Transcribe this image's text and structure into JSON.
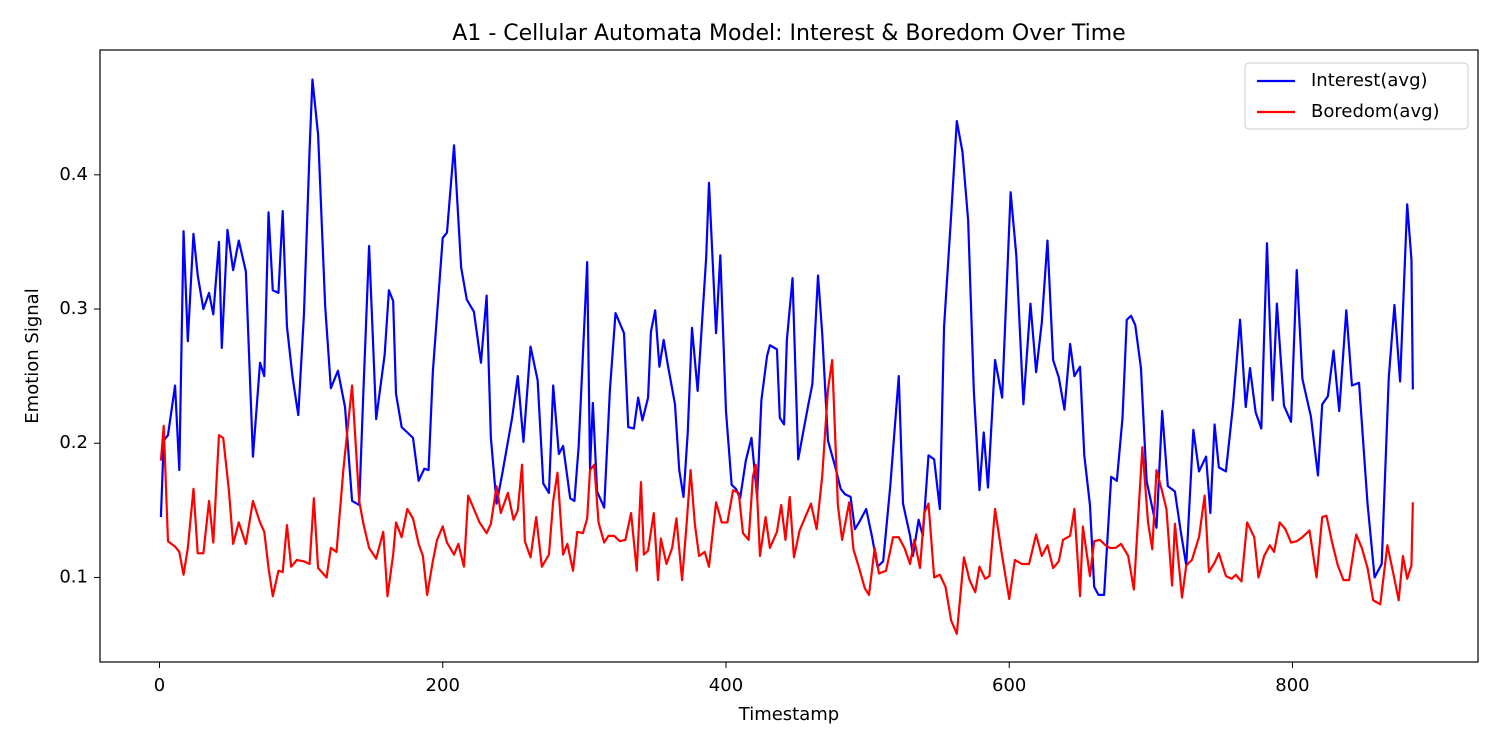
{
  "chart_data": {
    "type": "line",
    "title": "A1 - Cellular Automata Model: Interest & Boredom Over Time",
    "x_label": "Timestamp",
    "y_label": "Emotion Signal",
    "xlim": [
      -42,
      931
    ],
    "ylim": [
      0.037,
      0.493
    ],
    "xticks": [
      0,
      200,
      400,
      600,
      800
    ],
    "yticks": [
      0.1,
      0.2,
      0.3,
      0.4
    ],
    "legend": "upper right",
    "grid": false,
    "series": [
      {
        "name": "Interest(avg)",
        "color": "#0000ff",
        "x": [
          1,
          3,
          6,
          11,
          14,
          17,
          20,
          24,
          27,
          31,
          35,
          38,
          42,
          44,
          48,
          52,
          56,
          61,
          66,
          71,
          74,
          77,
          80,
          84,
          87,
          90,
          94,
          98,
          102,
          106,
          108,
          112,
          117,
          121,
          126,
          131,
          136,
          141,
          144,
          148,
          153,
          159,
          162,
          165,
          167,
          171,
          175,
          179,
          183,
          187,
          190,
          193,
          196,
          200,
          203,
          208,
          213,
          217,
          222,
          227,
          231,
          234,
          238,
          242,
          249,
          253,
          257,
          262,
          267,
          271,
          275,
          278,
          282,
          285,
          290,
          293,
          296,
          302,
          304,
          306,
          309,
          314,
          318,
          322,
          328,
          331,
          335,
          338,
          341,
          345,
          347,
          350,
          353,
          356,
          359,
          364,
          367,
          370,
          373,
          376,
          380,
          386,
          388,
          393,
          396,
          400,
          404,
          407,
          410,
          414,
          418,
          422,
          425,
          429,
          431,
          436,
          438,
          441,
          443,
          447,
          451,
          455,
          458,
          461,
          465,
          468,
          472,
          477,
          481,
          484,
          488,
          491,
          494,
          499,
          503,
          507,
          511,
          516,
          522,
          525,
          530,
          532,
          536,
          539,
          543,
          547,
          551,
          554,
          559,
          563,
          567,
          571,
          575,
          579,
          582,
          585,
          590,
          595,
          601,
          605,
          610,
          615,
          619,
          623,
          627,
          631,
          635,
          639,
          643,
          646,
          650,
          653,
          657,
          660,
          663,
          667,
          672,
          676,
          680,
          683,
          686,
          689,
          693,
          697,
          700,
          704,
          708,
          712,
          717,
          721,
          725,
          730,
          734,
          739,
          742,
          745,
          748,
          753,
          758,
          763,
          767,
          770,
          774,
          778,
          782,
          786,
          789,
          794,
          799,
          803,
          807,
          813,
          818,
          821,
          825,
          829,
          833,
          838,
          842,
          847,
          853,
          858,
          863,
          868,
          872,
          876,
          881,
          884,
          885
        ],
        "values": [
          0.145,
          0.202,
          0.206,
          0.243,
          0.18,
          0.358,
          0.276,
          0.356,
          0.325,
          0.3,
          0.312,
          0.296,
          0.35,
          0.271,
          0.359,
          0.329,
          0.351,
          0.328,
          0.19,
          0.26,
          0.25,
          0.372,
          0.314,
          0.312,
          0.373,
          0.287,
          0.249,
          0.221,
          0.296,
          0.419,
          0.471,
          0.43,
          0.302,
          0.241,
          0.254,
          0.227,
          0.157,
          0.154,
          0.239,
          0.347,
          0.218,
          0.266,
          0.314,
          0.306,
          0.237,
          0.212,
          0.208,
          0.204,
          0.172,
          0.181,
          0.18,
          0.253,
          0.296,
          0.353,
          0.357,
          0.422,
          0.331,
          0.307,
          0.298,
          0.26,
          0.31,
          0.204,
          0.155,
          0.177,
          0.219,
          0.25,
          0.201,
          0.272,
          0.247,
          0.17,
          0.163,
          0.243,
          0.192,
          0.198,
          0.159,
          0.157,
          0.198,
          0.335,
          0.181,
          0.23,
          0.164,
          0.152,
          0.239,
          0.297,
          0.282,
          0.212,
          0.211,
          0.234,
          0.217,
          0.234,
          0.283,
          0.299,
          0.257,
          0.277,
          0.258,
          0.229,
          0.18,
          0.16,
          0.208,
          0.286,
          0.239,
          0.338,
          0.394,
          0.282,
          0.34,
          0.224,
          0.169,
          0.166,
          0.159,
          0.187,
          0.204,
          0.16,
          0.232,
          0.265,
          0.273,
          0.27,
          0.219,
          0.214,
          0.277,
          0.323,
          0.188,
          0.211,
          0.228,
          0.244,
          0.325,
          0.281,
          0.202,
          0.183,
          0.166,
          0.162,
          0.16,
          0.136,
          0.141,
          0.151,
          0.131,
          0.108,
          0.112,
          0.168,
          0.25,
          0.155,
          0.131,
          0.116,
          0.143,
          0.131,
          0.191,
          0.188,
          0.151,
          0.287,
          0.37,
          0.44,
          0.417,
          0.366,
          0.239,
          0.165,
          0.208,
          0.167,
          0.262,
          0.234,
          0.387,
          0.34,
          0.229,
          0.304,
          0.253,
          0.29,
          0.351,
          0.262,
          0.249,
          0.225,
          0.274,
          0.25,
          0.257,
          0.191,
          0.154,
          0.093,
          0.087,
          0.087,
          0.175,
          0.172,
          0.219,
          0.292,
          0.295,
          0.288,
          0.256,
          0.172,
          0.157,
          0.137,
          0.224,
          0.168,
          0.164,
          0.135,
          0.109,
          0.21,
          0.179,
          0.19,
          0.148,
          0.214,
          0.182,
          0.179,
          0.228,
          0.292,
          0.227,
          0.256,
          0.223,
          0.211,
          0.349,
          0.232,
          0.304,
          0.228,
          0.216,
          0.329,
          0.248,
          0.22,
          0.176,
          0.229,
          0.235,
          0.269,
          0.224,
          0.299,
          0.243,
          0.245,
          0.155,
          0.1,
          0.11,
          0.249,
          0.303,
          0.246,
          0.378,
          0.337,
          0.24
        ]
      },
      {
        "name": "Boredom(avg)",
        "color": "#ff0000",
        "x": [
          1,
          3,
          6,
          11,
          14,
          17,
          20,
          24,
          27,
          31,
          35,
          38,
          42,
          45,
          49,
          52,
          56,
          61,
          66,
          71,
          74,
          77,
          80,
          84,
          87,
          90,
          93,
          97,
          102,
          106,
          109,
          112,
          118,
          121,
          125,
          130,
          136,
          141,
          144,
          148,
          153,
          158,
          161,
          165,
          167,
          171,
          175,
          179,
          183,
          186,
          189,
          193,
          196,
          200,
          203,
          208,
          211,
          215,
          218,
          222,
          226,
          231,
          234,
          238,
          241,
          246,
          250,
          253,
          256,
          258,
          262,
          266,
          270,
          275,
          278,
          281,
          285,
          288,
          292,
          295,
          299,
          302,
          304,
          307,
          310,
          314,
          317,
          321,
          325,
          329,
          333,
          337,
          340,
          342,
          345,
          349,
          352,
          354,
          358,
          362,
          365,
          369,
          372,
          375,
          378,
          381,
          385,
          388,
          393,
          397,
          401,
          405,
          409,
          412,
          416,
          419,
          421,
          424,
          428,
          431,
          436,
          439,
          442,
          445,
          448,
          452,
          460,
          464,
          468,
          472,
          475,
          479,
          482,
          487,
          490,
          494,
          498,
          501,
          505,
          508,
          513,
          518,
          522,
          526,
          530,
          533,
          537,
          540,
          543,
          547,
          551,
          555,
          559,
          563,
          568,
          572,
          576,
          579,
          583,
          586,
          590,
          595,
          600,
          604,
          609,
          614,
          619,
          623,
          627,
          631,
          635,
          638,
          643,
          646,
          650,
          652,
          657,
          660,
          664,
          668,
          671,
          675,
          679,
          684,
          688,
          694,
          698,
          701,
          704,
          708,
          711,
          715,
          717,
          722,
          725,
          729,
          734,
          738,
          741,
          745,
          748,
          753,
          757,
          760,
          764,
          768,
          773,
          776,
          780,
          784,
          787,
          791,
          795,
          799,
          803,
          807,
          812,
          817,
          821,
          824,
          828,
          832,
          836,
          840,
          845,
          849,
          853,
          857,
          862,
          867,
          871,
          875,
          878,
          881,
          884,
          885
        ],
        "values": [
          0.187,
          0.213,
          0.127,
          0.123,
          0.119,
          0.102,
          0.122,
          0.166,
          0.118,
          0.118,
          0.157,
          0.126,
          0.206,
          0.204,
          0.165,
          0.125,
          0.141,
          0.125,
          0.157,
          0.141,
          0.134,
          0.107,
          0.086,
          0.105,
          0.104,
          0.139,
          0.108,
          0.113,
          0.112,
          0.11,
          0.159,
          0.107,
          0.1,
          0.122,
          0.119,
          0.182,
          0.243,
          0.157,
          0.14,
          0.122,
          0.114,
          0.134,
          0.086,
          0.117,
          0.141,
          0.13,
          0.151,
          0.144,
          0.125,
          0.116,
          0.087,
          0.112,
          0.128,
          0.138,
          0.126,
          0.117,
          0.125,
          0.108,
          0.161,
          0.151,
          0.141,
          0.133,
          0.14,
          0.168,
          0.148,
          0.163,
          0.143,
          0.15,
          0.184,
          0.127,
          0.115,
          0.145,
          0.108,
          0.117,
          0.157,
          0.178,
          0.117,
          0.125,
          0.105,
          0.134,
          0.133,
          0.144,
          0.18,
          0.184,
          0.141,
          0.126,
          0.131,
          0.131,
          0.127,
          0.128,
          0.148,
          0.105,
          0.171,
          0.117,
          0.12,
          0.148,
          0.098,
          0.129,
          0.11,
          0.122,
          0.144,
          0.098,
          0.137,
          0.18,
          0.14,
          0.116,
          0.119,
          0.108,
          0.156,
          0.141,
          0.141,
          0.165,
          0.163,
          0.133,
          0.128,
          0.175,
          0.184,
          0.116,
          0.145,
          0.122,
          0.134,
          0.154,
          0.128,
          0.16,
          0.115,
          0.135,
          0.155,
          0.136,
          0.176,
          0.24,
          0.262,
          0.154,
          0.128,
          0.156,
          0.121,
          0.107,
          0.092,
          0.087,
          0.122,
          0.103,
          0.105,
          0.13,
          0.13,
          0.122,
          0.11,
          0.128,
          0.107,
          0.148,
          0.155,
          0.1,
          0.102,
          0.093,
          0.068,
          0.058,
          0.115,
          0.098,
          0.089,
          0.108,
          0.099,
          0.101,
          0.151,
          0.116,
          0.084,
          0.113,
          0.11,
          0.11,
          0.132,
          0.116,
          0.124,
          0.107,
          0.112,
          0.128,
          0.131,
          0.151,
          0.086,
          0.138,
          0.101,
          0.127,
          0.128,
          0.124,
          0.122,
          0.122,
          0.125,
          0.116,
          0.091,
          0.197,
          0.141,
          0.121,
          0.18,
          0.164,
          0.151,
          0.094,
          0.14,
          0.085,
          0.109,
          0.113,
          0.13,
          0.161,
          0.104,
          0.111,
          0.118,
          0.101,
          0.099,
          0.102,
          0.097,
          0.141,
          0.13,
          0.1,
          0.116,
          0.124,
          0.119,
          0.141,
          0.136,
          0.126,
          0.127,
          0.13,
          0.135,
          0.1,
          0.145,
          0.146,
          0.126,
          0.109,
          0.098,
          0.098,
          0.132,
          0.122,
          0.107,
          0.083,
          0.08,
          0.124,
          0.104,
          0.083,
          0.116,
          0.099,
          0.109,
          0.156
        ]
      }
    ]
  }
}
